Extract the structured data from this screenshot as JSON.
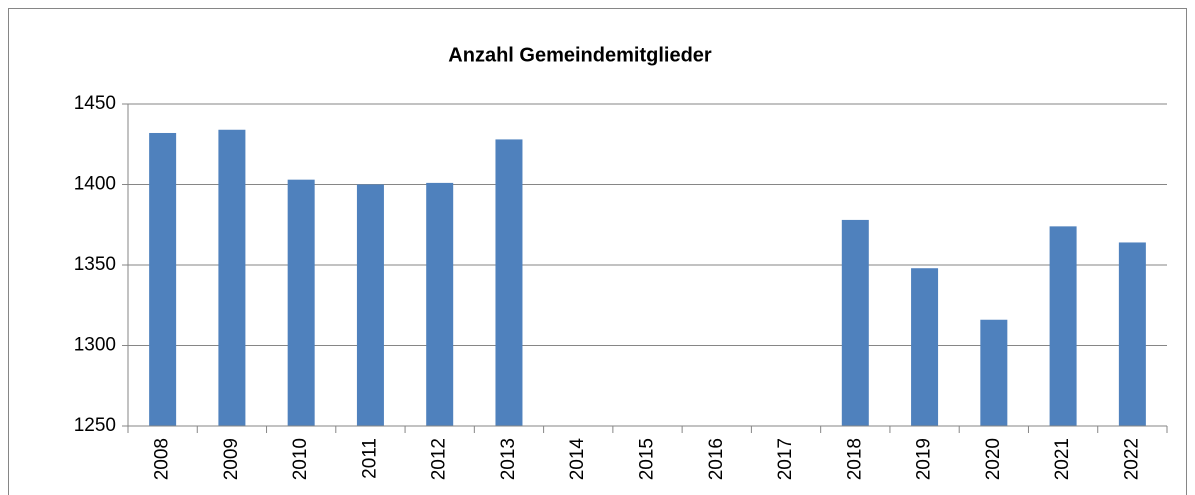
{
  "chart_data": {
    "type": "bar",
    "title": "Anzahl Gemeindemitglieder",
    "categories": [
      "2008",
      "2009",
      "2010",
      "2011",
      "2012",
      "2013",
      "2014",
      "2015",
      "2016",
      "2017",
      "2018",
      "2019",
      "2020",
      "2021",
      "2022"
    ],
    "values": [
      1432,
      1434,
      1403,
      1400,
      1401,
      1428,
      null,
      null,
      null,
      null,
      1378,
      1348,
      1316,
      1374,
      1364
    ],
    "color": "#4f81bd",
    "ylim": [
      1250,
      1450
    ],
    "yticks": [
      1250,
      1300,
      1350,
      1400,
      1450
    ],
    "grid": true
  }
}
